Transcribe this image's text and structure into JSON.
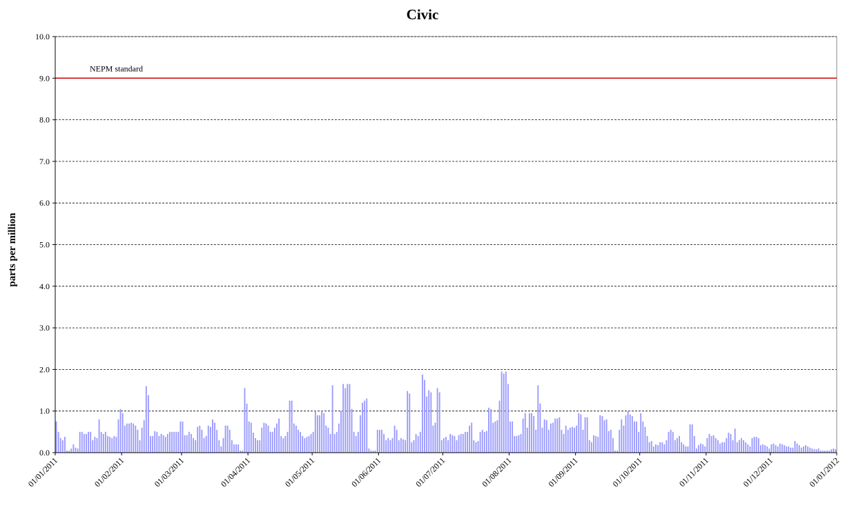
{
  "chart_data": {
    "type": "bar",
    "title": "Civic",
    "y_label": "parts per million",
    "grid": true,
    "grid_style": "dashed",
    "color": "#9999ff",
    "standard": {
      "label": "NEPM standard",
      "value": 9,
      "color": "#cc0000"
    },
    "ylim": [
      0,
      10
    ],
    "yticks": [
      {
        "value": 0,
        "label": "0.0"
      },
      {
        "value": 1,
        "label": "1.0"
      },
      {
        "value": 2,
        "label": "2.0"
      },
      {
        "value": 3,
        "label": "3.0"
      },
      {
        "value": 4,
        "label": "4.0"
      },
      {
        "value": 5,
        "label": "5.0"
      },
      {
        "value": 6,
        "label": "6.0"
      },
      {
        "value": 7,
        "label": "7.0"
      },
      {
        "value": 8,
        "label": "8.0"
      },
      {
        "value": 9,
        "label": "9.0"
      },
      {
        "value": 10,
        "label": "10.0"
      }
    ],
    "xlim": [
      "01/01/2011",
      "01/01/2012"
    ],
    "xticks": [
      "01/01/2011",
      "01/02/2011",
      "01/03/2011",
      "01/04/2011",
      "01/05/2011",
      "01/06/2011",
      "01/07/2011",
      "01/08/2011",
      "01/09/2011",
      "01/10/2011",
      "01/11/2011",
      "01/12/2011",
      "01/01/2012"
    ],
    "x": [
      "01/01/2011",
      "02/01/2011",
      "03/01/2011",
      "04/01/2011",
      "05/01/2011",
      "06/01/2011",
      "07/01/2011",
      "08/01/2011",
      "09/01/2011",
      "10/01/2011",
      "11/01/2011",
      "12/01/2011",
      "13/01/2011",
      "14/01/2011",
      "15/01/2011",
      "16/01/2011",
      "17/01/2011",
      "18/01/2011",
      "19/01/2011",
      "20/01/2011",
      "21/01/2011",
      "22/01/2011",
      "23/01/2011",
      "24/01/2011",
      "25/01/2011",
      "26/01/2011",
      "27/01/2011",
      "28/01/2011",
      "29/01/2011",
      "30/01/2011",
      "31/01/2011",
      "01/02/2011",
      "02/02/2011",
      "03/02/2011",
      "04/02/2011",
      "05/02/2011",
      "06/02/2011",
      "07/02/2011",
      "08/02/2011",
      "09/02/2011",
      "10/02/2011",
      "11/02/2011",
      "12/02/2011",
      "13/02/2011",
      "14/02/2011",
      "15/02/2011",
      "16/02/2011",
      "17/02/2011",
      "18/02/2011",
      "19/02/2011",
      "20/02/2011",
      "21/02/2011",
      "22/02/2011",
      "23/02/2011",
      "24/02/2011",
      "25/02/2011",
      "26/02/2011",
      "27/02/2011",
      "28/02/2011",
      "01/03/2011",
      "02/03/2011",
      "03/03/2011",
      "04/03/2011",
      "05/03/2011",
      "06/03/2011",
      "07/03/2011",
      "08/03/2011",
      "09/03/2011",
      "10/03/2011",
      "11/03/2011",
      "12/03/2011",
      "13/03/2011",
      "14/03/2011",
      "15/03/2011",
      "16/03/2011",
      "17/03/2011",
      "18/03/2011",
      "19/03/2011",
      "20/03/2011",
      "21/03/2011",
      "22/03/2011",
      "23/03/2011",
      "24/03/2011",
      "25/03/2011",
      "26/03/2011",
      "27/03/2011",
      "28/03/2011",
      "29/03/2011",
      "30/03/2011",
      "31/03/2011",
      "01/04/2011",
      "02/04/2011",
      "03/04/2011",
      "04/04/2011",
      "05/04/2011",
      "06/04/2011",
      "07/04/2011",
      "08/04/2011",
      "09/04/2011",
      "10/04/2011",
      "11/04/2011",
      "12/04/2011",
      "13/04/2011",
      "14/04/2011",
      "15/04/2011",
      "16/04/2011",
      "17/04/2011",
      "18/04/2011",
      "19/04/2011",
      "20/04/2011",
      "21/04/2011",
      "22/04/2011",
      "23/04/2011",
      "24/04/2011",
      "25/04/2011",
      "26/04/2011",
      "27/04/2011",
      "28/04/2011",
      "29/04/2011",
      "30/04/2011",
      "01/05/2011",
      "02/05/2011",
      "03/05/2011",
      "04/05/2011",
      "05/05/2011",
      "06/05/2011",
      "07/05/2011",
      "08/05/2011",
      "09/05/2011",
      "10/05/2011",
      "11/05/2011",
      "12/05/2011",
      "13/05/2011",
      "14/05/2011",
      "15/05/2011",
      "16/05/2011",
      "17/05/2011",
      "18/05/2011",
      "19/05/2011",
      "20/05/2011",
      "21/05/2011",
      "22/05/2011",
      "23/05/2011",
      "24/05/2011",
      "25/05/2011",
      "26/05/2011",
      "27/05/2011",
      "28/05/2011",
      "29/05/2011",
      "30/05/2011",
      "31/05/2011",
      "01/06/2011",
      "02/06/2011",
      "03/06/2011",
      "04/06/2011",
      "05/06/2011",
      "06/06/2011",
      "07/06/2011",
      "08/06/2011",
      "09/06/2011",
      "10/06/2011",
      "11/06/2011",
      "12/06/2011",
      "13/06/2011",
      "14/06/2011",
      "15/06/2011",
      "16/06/2011",
      "17/06/2011",
      "18/06/2011",
      "19/06/2011",
      "20/06/2011",
      "21/06/2011",
      "22/06/2011",
      "23/06/2011",
      "24/06/2011",
      "25/06/2011",
      "26/06/2011",
      "27/06/2011",
      "28/06/2011",
      "29/06/2011",
      "30/06/2011",
      "01/07/2011",
      "02/07/2011",
      "03/07/2011",
      "04/07/2011",
      "05/07/2011",
      "06/07/2011",
      "07/07/2011",
      "08/07/2011",
      "09/07/2011",
      "10/07/2011",
      "11/07/2011",
      "12/07/2011",
      "13/07/2011",
      "14/07/2011",
      "15/07/2011",
      "16/07/2011",
      "17/07/2011",
      "18/07/2011",
      "19/07/2011",
      "20/07/2011",
      "21/07/2011",
      "22/07/2011",
      "23/07/2011",
      "24/07/2011",
      "25/07/2011",
      "26/07/2011",
      "27/07/2011",
      "28/07/2011",
      "29/07/2011",
      "30/07/2011",
      "31/07/2011",
      "01/08/2011",
      "02/08/2011",
      "03/08/2011",
      "04/08/2011",
      "05/08/2011",
      "06/08/2011",
      "07/08/2011",
      "08/08/2011",
      "09/08/2011",
      "10/08/2011",
      "11/08/2011",
      "12/08/2011",
      "13/08/2011",
      "14/08/2011",
      "15/08/2011",
      "16/08/2011",
      "17/08/2011",
      "18/08/2011",
      "19/08/2011",
      "20/08/2011",
      "21/08/2011",
      "22/08/2011",
      "23/08/2011",
      "24/08/2011",
      "25/08/2011",
      "26/08/2011",
      "27/08/2011",
      "28/08/2011",
      "29/08/2011",
      "30/08/2011",
      "31/08/2011",
      "01/09/2011",
      "02/09/2011",
      "03/09/2011",
      "04/09/2011",
      "05/09/2011",
      "06/09/2011",
      "07/09/2011",
      "08/09/2011",
      "09/09/2011",
      "10/09/2011",
      "11/09/2011",
      "12/09/2011",
      "13/09/2011",
      "14/09/2011",
      "15/09/2011",
      "16/09/2011",
      "17/09/2011",
      "18/09/2011",
      "19/09/2011",
      "20/09/2011",
      "21/09/2011",
      "22/09/2011",
      "23/09/2011",
      "24/09/2011",
      "25/09/2011",
      "26/09/2011",
      "27/09/2011",
      "28/09/2011",
      "29/09/2011",
      "30/09/2011",
      "01/10/2011",
      "02/10/2011",
      "03/10/2011",
      "04/10/2011",
      "05/10/2011",
      "06/10/2011",
      "07/10/2011",
      "08/10/2011",
      "09/10/2011",
      "10/10/2011",
      "11/10/2011",
      "12/10/2011",
      "13/10/2011",
      "14/10/2011",
      "15/10/2011",
      "16/10/2011",
      "17/10/2011",
      "18/10/2011",
      "19/10/2011",
      "20/10/2011",
      "21/10/2011",
      "22/10/2011",
      "23/10/2011",
      "24/10/2011",
      "25/10/2011",
      "26/10/2011",
      "27/10/2011",
      "28/10/2011",
      "29/10/2011",
      "30/10/2011",
      "31/10/2011",
      "01/11/2011",
      "02/11/2011",
      "03/11/2011",
      "04/11/2011",
      "05/11/2011",
      "06/11/2011",
      "07/11/2011",
      "08/11/2011",
      "09/11/2011",
      "10/11/2011",
      "11/11/2011",
      "12/11/2011",
      "13/11/2011",
      "14/11/2011",
      "15/11/2011",
      "16/11/2011",
      "17/11/2011",
      "18/11/2011",
      "19/11/2011",
      "20/11/2011",
      "21/11/2011",
      "22/11/2011",
      "23/11/2011",
      "24/11/2011",
      "25/11/2011",
      "26/11/2011",
      "27/11/2011",
      "28/11/2011",
      "29/11/2011",
      "30/11/2011",
      "01/12/2011",
      "02/12/2011",
      "03/12/2011",
      "04/12/2011",
      "05/12/2011",
      "06/12/2011",
      "07/12/2011",
      "08/12/2011",
      "09/12/2011",
      "10/12/2011",
      "11/12/2011",
      "12/12/2011",
      "13/12/2011",
      "14/12/2011",
      "15/12/2011",
      "16/12/2011",
      "17/12/2011",
      "18/12/2011",
      "19/12/2011",
      "20/12/2011",
      "21/12/2011",
      "22/12/2011",
      "23/12/2011",
      "24/12/2011",
      "25/12/2011",
      "26/12/2011",
      "27/12/2011",
      "28/12/2011",
      "29/12/2011",
      "30/12/2011",
      "31/12/2011"
    ],
    "values": [
      0.75,
      0.5,
      0.35,
      0.3,
      0.38,
      0.05,
      0.05,
      0.1,
      0.2,
      0.12,
      0.1,
      0.5,
      0.5,
      0.45,
      0.45,
      0.5,
      0.5,
      0.3,
      0.38,
      0.35,
      0.8,
      0.5,
      0.45,
      0.5,
      0.4,
      0.38,
      0.35,
      0.4,
      0.38,
      0.8,
      1.05,
      0.95,
      0.65,
      0.7,
      0.7,
      0.72,
      0.7,
      0.65,
      0.55,
      0.3,
      0.6,
      0.78,
      1.6,
      1.38,
      0.4,
      0.4,
      0.52,
      0.5,
      0.4,
      0.45,
      0.42,
      0.38,
      0.45,
      0.5,
      0.5,
      0.5,
      0.5,
      0.5,
      0.75,
      0.75,
      0.42,
      0.42,
      0.5,
      0.45,
      0.35,
      0.3,
      0.62,
      0.65,
      0.55,
      0.35,
      0.4,
      0.65,
      0.62,
      0.8,
      0.72,
      0.55,
      0.3,
      0.15,
      0.35,
      0.65,
      0.65,
      0.55,
      0.3,
      0.2,
      0.2,
      0.2,
      0.05,
      0.05,
      1.55,
      1.18,
      0.75,
      0.72,
      0.48,
      0.35,
      0.3,
      0.3,
      0.6,
      0.72,
      0.7,
      0.65,
      0.5,
      0.5,
      0.6,
      0.7,
      0.82,
      0.4,
      0.35,
      0.4,
      0.5,
      1.25,
      1.25,
      0.7,
      0.65,
      0.55,
      0.5,
      0.4,
      0.35,
      0.38,
      0.4,
      0.45,
      0.5,
      1.0,
      0.9,
      0.9,
      1.0,
      0.95,
      0.65,
      0.6,
      0.45,
      1.62,
      0.45,
      0.5,
      0.7,
      1.0,
      1.65,
      1.55,
      1.65,
      1.65,
      1.05,
      0.5,
      0.4,
      0.5,
      0.9,
      1.2,
      1.25,
      1.3,
      0.1,
      0.05,
      0.05,
      0.05,
      0.55,
      0.55,
      0.55,
      0.45,
      0.3,
      0.35,
      0.3,
      0.35,
      0.65,
      0.55,
      0.3,
      0.35,
      0.32,
      0.3,
      1.48,
      1.42,
      0.25,
      0.3,
      0.45,
      0.4,
      0.5,
      1.88,
      1.75,
      1.35,
      1.5,
      1.45,
      0.65,
      0.72,
      1.55,
      1.45,
      0.3,
      0.35,
      0.38,
      0.3,
      0.45,
      0.42,
      0.4,
      0.3,
      0.42,
      0.45,
      0.45,
      0.5,
      0.5,
      0.65,
      0.72,
      0.3,
      0.25,
      0.28,
      0.5,
      0.55,
      0.5,
      0.52,
      1.08,
      1.05,
      0.72,
      0.75,
      0.78,
      1.25,
      1.95,
      1.9,
      1.95,
      1.65,
      0.75,
      0.75,
      0.4,
      0.4,
      0.42,
      0.45,
      0.82,
      0.95,
      0.6,
      0.95,
      0.95,
      0.88,
      0.55,
      1.62,
      1.18,
      0.6,
      0.8,
      0.78,
      0.55,
      0.7,
      0.72,
      0.82,
      0.82,
      0.85,
      0.55,
      0.45,
      0.65,
      0.55,
      0.6,
      0.62,
      0.6,
      0.65,
      0.95,
      0.92,
      0.55,
      0.85,
      0.85,
      0.3,
      0.25,
      0.42,
      0.4,
      0.38,
      0.9,
      0.88,
      0.78,
      0.8,
      0.52,
      0.55,
      0.35,
      0.05,
      0.05,
      0.55,
      0.8,
      0.65,
      0.9,
      1.0,
      0.92,
      0.88,
      0.75,
      0.75,
      0.5,
      0.95,
      0.75,
      0.62,
      0.4,
      0.25,
      0.28,
      0.15,
      0.2,
      0.18,
      0.25,
      0.25,
      0.2,
      0.3,
      0.5,
      0.55,
      0.5,
      0.3,
      0.35,
      0.4,
      0.25,
      0.2,
      0.15,
      0.15,
      0.68,
      0.68,
      0.4,
      0.1,
      0.18,
      0.22,
      0.2,
      0.15,
      0.35,
      0.45,
      0.4,
      0.42,
      0.35,
      0.3,
      0.22,
      0.25,
      0.25,
      0.35,
      0.48,
      0.45,
      0.3,
      0.58,
      0.25,
      0.3,
      0.35,
      0.3,
      0.25,
      0.2,
      0.15,
      0.35,
      0.38,
      0.38,
      0.35,
      0.18,
      0.2,
      0.18,
      0.15,
      0.1,
      0.2,
      0.22,
      0.18,
      0.15,
      0.22,
      0.2,
      0.18,
      0.15,
      0.15,
      0.12,
      0.12,
      0.28,
      0.22,
      0.18,
      0.12,
      0.15,
      0.18,
      0.15,
      0.12,
      0.1,
      0.08,
      0.08,
      0.1,
      0.05,
      0.05,
      0.05,
      0.05,
      0.05,
      0.08,
      0.1,
      0.08
    ]
  }
}
